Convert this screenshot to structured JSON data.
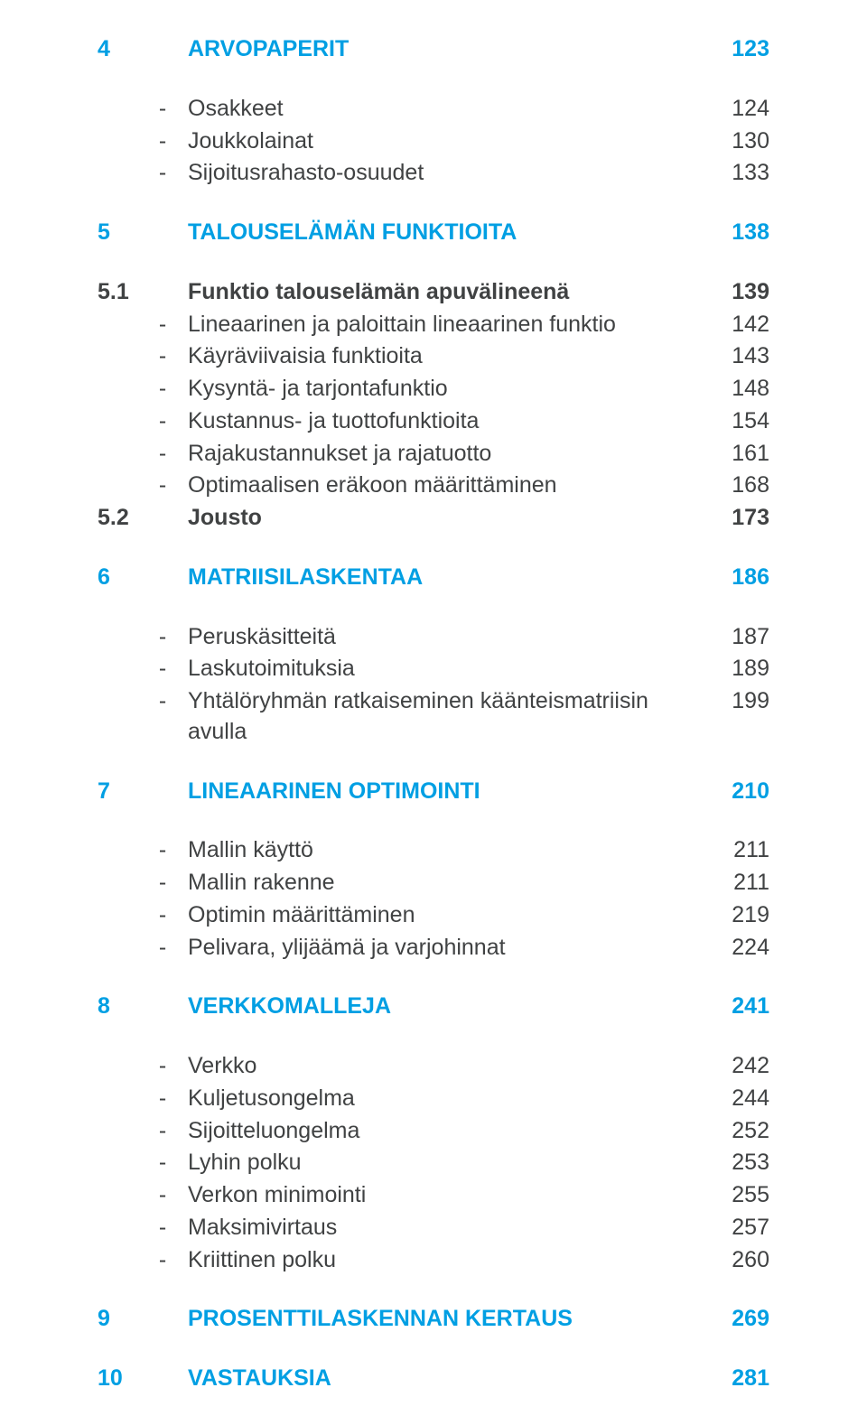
{
  "colors": {
    "accent": "#009fe3",
    "body": "#404243",
    "background": "#ffffff"
  },
  "typography": {
    "font_family": "Arial, Helvetica, sans-serif",
    "font_size_pt": 18,
    "chapter_weight": 700,
    "section_weight": 700,
    "item_weight": 400
  },
  "entries": [
    {
      "kind": "chapter",
      "num": "4",
      "label": "ARVOPAPERIT",
      "page": "123"
    },
    {
      "kind": "gap",
      "size": "md"
    },
    {
      "kind": "item",
      "bullet": "-",
      "label": "Osakkeet",
      "page": "124"
    },
    {
      "kind": "item",
      "bullet": "-",
      "label": "Joukkolainat",
      "page": "130"
    },
    {
      "kind": "item",
      "bullet": "-",
      "label": "Sijoitusrahasto-osuudet",
      "page": "133"
    },
    {
      "kind": "gap",
      "size": "lg"
    },
    {
      "kind": "chapter",
      "num": "5",
      "label": "TALOUSELÄMÄN FUNKTIOITA",
      "page": "138"
    },
    {
      "kind": "gap",
      "size": "md"
    },
    {
      "kind": "section",
      "num": "5.1",
      "label": "Funktio talouselämän apuvälineenä",
      "page": "139"
    },
    {
      "kind": "item",
      "bullet": "-",
      "label": "Lineaarinen ja paloittain lineaarinen funktio",
      "page": "142"
    },
    {
      "kind": "item",
      "bullet": "-",
      "label": "Käyräviivaisia funktioita",
      "page": "143"
    },
    {
      "kind": "item",
      "bullet": "-",
      "label": "Kysyntä- ja tarjontafunktio",
      "page": "148"
    },
    {
      "kind": "item",
      "bullet": "-",
      "label": "Kustannus- ja tuottofunktioita",
      "page": "154"
    },
    {
      "kind": "item",
      "bullet": "-",
      "label": "Rajakustannukset ja rajatuotto",
      "page": "161"
    },
    {
      "kind": "item",
      "bullet": "-",
      "label": "Optimaalisen eräkoon määrittäminen",
      "page": "168"
    },
    {
      "kind": "section",
      "num": "5.2",
      "label": "Jousto",
      "page": "173"
    },
    {
      "kind": "gap",
      "size": "lg"
    },
    {
      "kind": "chapter",
      "num": "6",
      "label": "MATRIISILASKENTAA",
      "page": "186"
    },
    {
      "kind": "gap",
      "size": "md"
    },
    {
      "kind": "item",
      "bullet": "-",
      "label": "Peruskäsitteitä",
      "page": "187"
    },
    {
      "kind": "item",
      "bullet": "-",
      "label": "Laskutoimituksia",
      "page": "189"
    },
    {
      "kind": "item",
      "bullet": "-",
      "label": "Yhtälöryhmän ratkaiseminen käänteismatriisin avulla",
      "page": "199"
    },
    {
      "kind": "gap",
      "size": "lg"
    },
    {
      "kind": "chapter",
      "num": "7",
      "label": "LINEAARINEN OPTIMOINTI",
      "page": "210"
    },
    {
      "kind": "gap",
      "size": "md"
    },
    {
      "kind": "item",
      "bullet": "-",
      "label": "Mallin käyttö",
      "page": "211"
    },
    {
      "kind": "item",
      "bullet": "-",
      "label": "Mallin rakenne",
      "page": "211"
    },
    {
      "kind": "item",
      "bullet": "-",
      "label": "Optimin määrittäminen",
      "page": "219"
    },
    {
      "kind": "item",
      "bullet": "-",
      "label": "Pelivara, ylijäämä ja varjohinnat",
      "page": "224"
    },
    {
      "kind": "gap",
      "size": "lg"
    },
    {
      "kind": "chapter",
      "num": "8",
      "label": "VERKKOMALLEJA",
      "page": "241"
    },
    {
      "kind": "gap",
      "size": "md"
    },
    {
      "kind": "item",
      "bullet": "-",
      "label": "Verkko",
      "page": "242"
    },
    {
      "kind": "item",
      "bullet": "-",
      "label": "Kuljetusongelma",
      "page": "244"
    },
    {
      "kind": "item",
      "bullet": "-",
      "label": "Sijoitteluongelma",
      "page": "252"
    },
    {
      "kind": "item",
      "bullet": "-",
      "label": "Lyhin polku",
      "page": "253"
    },
    {
      "kind": "item",
      "bullet": "-",
      "label": "Verkon minimointi",
      "page": "255"
    },
    {
      "kind": "item",
      "bullet": "-",
      "label": "Maksimivirtaus",
      "page": "257"
    },
    {
      "kind": "item",
      "bullet": "-",
      "label": "Kriittinen polku",
      "page": "260"
    },
    {
      "kind": "gap",
      "size": "lg"
    },
    {
      "kind": "chapter",
      "num": "9",
      "label": "PROSENTTILASKENNAN KERTAUS",
      "page": "269"
    },
    {
      "kind": "gap",
      "size": "lg"
    },
    {
      "kind": "chapter",
      "num": "10",
      "label": "VASTAUKSIA",
      "page": "281"
    }
  ]
}
